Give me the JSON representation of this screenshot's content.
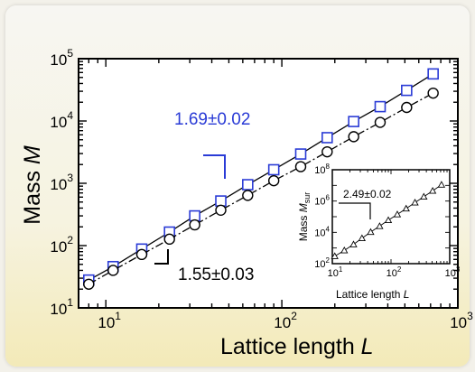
{
  "chart_data": [
    {
      "type": "scatter",
      "xscale": "log",
      "yscale": "log",
      "xlim": [
        7,
        1000
      ],
      "ylim": [
        10,
        100000
      ],
      "xlabel_text": "Lattice length ",
      "xlabel_var": "L",
      "ylabel_text": "Mass ",
      "ylabel_var": "M",
      "x_ticks": [
        {
          "base": "10",
          "exp": "1"
        },
        {
          "base": "10",
          "exp": "2"
        },
        {
          "base": "10",
          "exp": "3"
        }
      ],
      "y_ticks": [
        {
          "base": "10",
          "exp": "1"
        },
        {
          "base": "10",
          "exp": "2"
        },
        {
          "base": "10",
          "exp": "3"
        },
        {
          "base": "10",
          "exp": "4"
        },
        {
          "base": "10",
          "exp": "5"
        }
      ],
      "series": [
        {
          "marker": "square",
          "color": "#2a3bd6",
          "line": "solid",
          "x": [
            8,
            11,
            16,
            23,
            32,
            45,
            64,
            90,
            128,
            181,
            256,
            362,
            512,
            724
          ],
          "y": [
            28,
            46,
            88,
            165,
            300,
            520,
            950,
            1650,
            2950,
            5400,
            9800,
            17000,
            31000,
            57000
          ]
        },
        {
          "marker": "circle",
          "color": "#000000",
          "line": "dashdot",
          "x": [
            8,
            11,
            16,
            23,
            32,
            45,
            64,
            90,
            128,
            181,
            256,
            362,
            512,
            724
          ],
          "y": [
            24,
            40,
            72,
            127,
            215,
            370,
            640,
            1100,
            1850,
            3200,
            5600,
            9500,
            16500,
            28000
          ]
        }
      ],
      "annotations": [
        {
          "text": "1.69±0.02",
          "color": "#2a3bd6"
        },
        {
          "text": "1.55±0.03",
          "color": "#000000"
        }
      ]
    },
    {
      "type": "scatter",
      "xscale": "log",
      "yscale": "log",
      "xlim": [
        10,
        1000
      ],
      "ylim": [
        100,
        100000000
      ],
      "xlabel_text": "Lattice length ",
      "xlabel_var": "L",
      "ylabel_text": "Mass ",
      "ylabel_var": "M",
      "ylabel_sub": "sur",
      "x_ticks": [
        {
          "base": "10",
          "exp": "1"
        },
        {
          "base": "10",
          "exp": "2"
        },
        {
          "base": "10",
          "exp": "3"
        }
      ],
      "y_ticks": [
        {
          "base": "10",
          "exp": "2"
        },
        {
          "base": "10",
          "exp": "4"
        },
        {
          "base": "10",
          "exp": "6"
        },
        {
          "base": "10",
          "exp": "8"
        }
      ],
      "series": [
        {
          "marker": "triangle",
          "color": "#000000",
          "line": "solid",
          "x": [
            11,
            16,
            23,
            32,
            45,
            64,
            90,
            128,
            181,
            256,
            362,
            512,
            724
          ],
          "y": [
            300,
            700,
            1700,
            4200,
            10500,
            25000,
            60000,
            140000,
            330000,
            800000,
            1900000,
            4500000,
            11000000
          ]
        }
      ],
      "annotations": [
        {
          "text": "2.49±0.02",
          "color": "#000000"
        }
      ]
    }
  ]
}
